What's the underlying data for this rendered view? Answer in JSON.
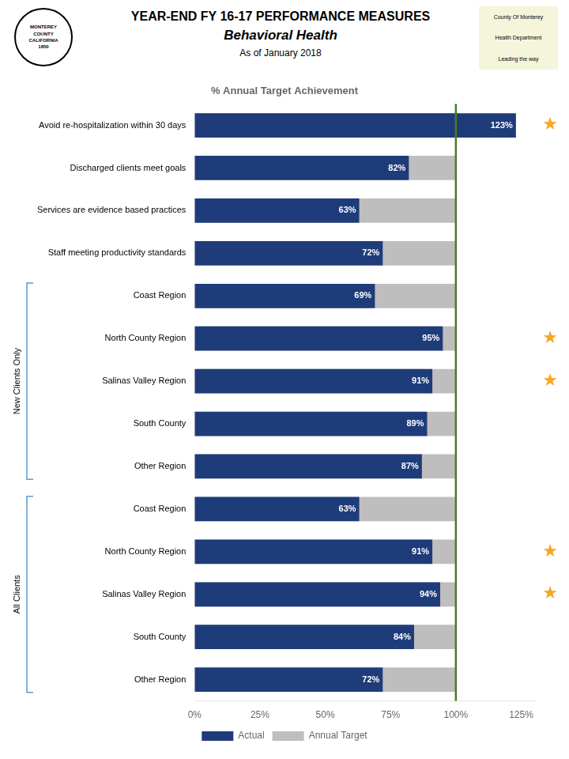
{
  "chart_data": {
    "type": "bar",
    "orientation": "horizontal",
    "title": "YEAR-END FY 16-17 PERFORMANCE MEASURES",
    "subtitle": [
      "Behavioral Health",
      "As of January 2018"
    ],
    "xlabel": "% Annual Target Achievement",
    "categories": [
      "Avoid re-hospitalization within 30 days",
      "Discharged clients meet goals",
      "Services are evidence based practices",
      "Staff meeting productivity standards",
      "Coast Region",
      "North County Region",
      "Salinas Valley Region",
      "South County",
      "Other Region",
      "Coast Region",
      "North County Region",
      "Salinas Valley Region",
      "South County",
      "Other Region"
    ],
    "series": [
      {
        "name": "Annual Target",
        "color": "#BEBEBE",
        "values": [
          100,
          100,
          100,
          100,
          100,
          100,
          100,
          100,
          100,
          100,
          100,
          100,
          100,
          100
        ]
      },
      {
        "name": "Actual",
        "color": "#1F3C7A",
        "values": [
          123,
          82,
          63,
          72,
          69,
          95,
          91,
          89,
          87,
          63,
          91,
          94,
          84,
          72
        ],
        "data_labels": true,
        "value_labels": [
          "123%",
          "82%",
          "63%",
          "72%",
          "69%",
          "95%",
          "91%",
          "89%",
          "87%",
          "63%",
          "91%",
          "94%",
          "84%",
          "72%"
        ]
      }
    ],
    "xlim": [
      0,
      130
    ],
    "xticks": [
      {
        "value": 0,
        "label": "0%"
      },
      {
        "value": 25,
        "label": "25%"
      },
      {
        "value": 50,
        "label": "50%"
      },
      {
        "value": 75,
        "label": "75%"
      },
      {
        "value": 100,
        "label": "100%"
      },
      {
        "value": 125,
        "label": "125%"
      }
    ],
    "grid": false,
    "legend": "bottom",
    "reference_lines": [
      {
        "value": 100,
        "color": "#4A7A2A"
      }
    ],
    "annotations": [
      {
        "text": "★",
        "row": 0,
        "color": "#F5A623"
      },
      {
        "text": "★",
        "row": 5,
        "color": "#F5A623"
      },
      {
        "text": "★",
        "row": 6,
        "color": "#F5A623"
      },
      {
        "text": "★",
        "row": 10,
        "color": "#F5A623"
      },
      {
        "text": "★",
        "row": 11,
        "color": "#F5A623"
      }
    ],
    "groups": [
      {
        "label": "New Clients Only",
        "rows": [
          4,
          5,
          6,
          7,
          8
        ],
        "color": "#5B9BD5"
      },
      {
        "label": "All Clients",
        "rows": [
          9,
          10,
          11,
          12,
          13
        ],
        "color": "#5B9BD5"
      }
    ],
    "badges": [
      {
        "lines": [
          "MONTEREY",
          "COUNTY",
          "CALIFORNIA",
          "1850"
        ]
      },
      {
        "lines": [
          "County Of Monterey",
          "Health Department",
          "Leading the way"
        ]
      }
    ]
  }
}
